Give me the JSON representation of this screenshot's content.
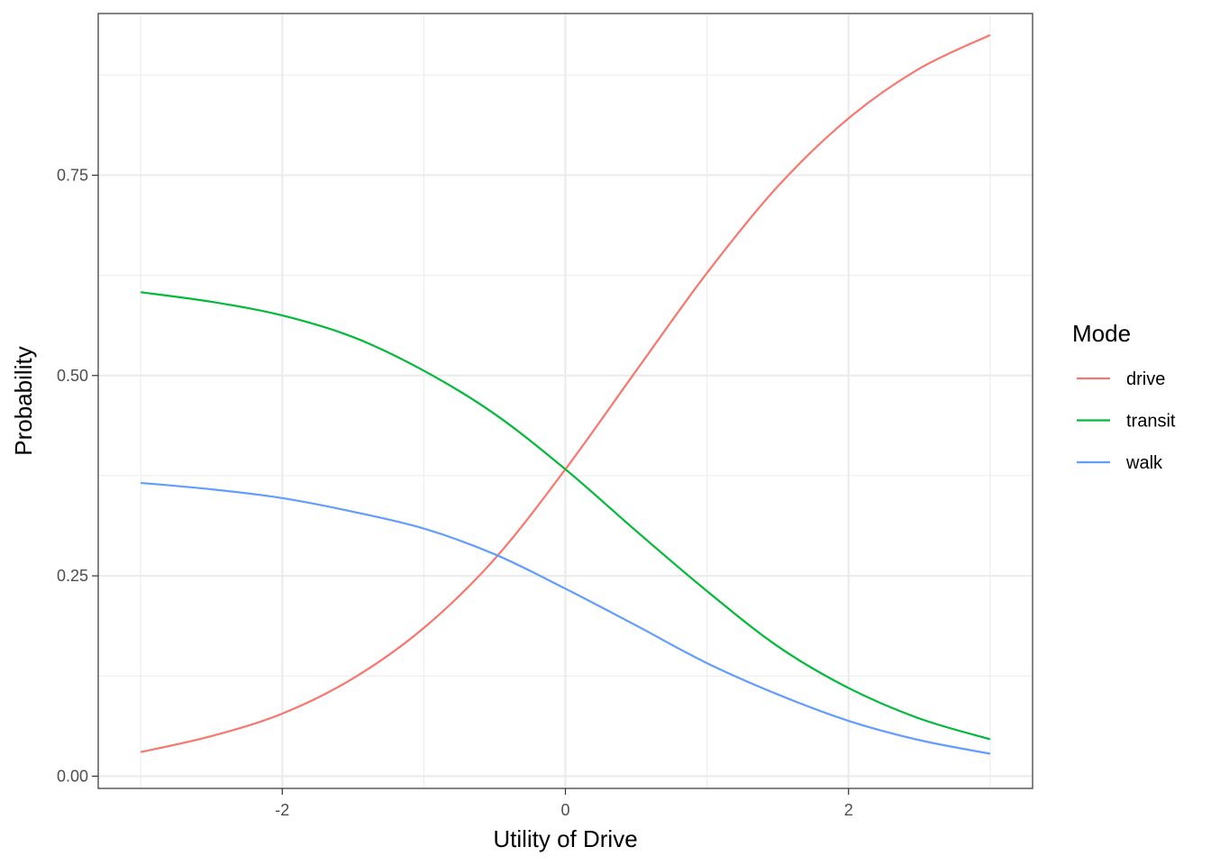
{
  "chart_data": {
    "type": "line",
    "xlabel": "Utility of Drive",
    "ylabel": "Probability",
    "xlim": [
      -3.3,
      3.3
    ],
    "ylim": [
      -0.0153,
      0.9518
    ],
    "x_ticks": [
      {
        "value": -2,
        "label": "-2"
      },
      {
        "value": 0,
        "label": "0"
      },
      {
        "value": 2,
        "label": "2"
      }
    ],
    "y_ticks": [
      {
        "value": 0.0,
        "label": "0.00"
      },
      {
        "value": 0.25,
        "label": "0.25"
      },
      {
        "value": 0.5,
        "label": "0.50"
      },
      {
        "value": 0.75,
        "label": "0.75"
      }
    ],
    "grid": true,
    "legend": {
      "title": "Mode",
      "position": "right"
    },
    "x": [
      -3.0,
      -2.5,
      -2.0,
      -1.5,
      -1.0,
      -0.5,
      0.0,
      0.5,
      1.0,
      1.5,
      2.0,
      2.5,
      3.0
    ],
    "series": [
      {
        "name": "drive",
        "color": "#F8766D",
        "values": [
          0.03,
          0.05,
          0.078,
          0.122,
          0.185,
          0.271,
          0.383,
          0.506,
          0.628,
          0.736,
          0.821,
          0.883,
          0.925
        ]
      },
      {
        "name": "transit",
        "color": "#00BA38",
        "values": [
          0.604,
          0.592,
          0.575,
          0.548,
          0.506,
          0.452,
          0.383,
          0.306,
          0.231,
          0.162,
          0.11,
          0.072,
          0.046
        ]
      },
      {
        "name": "walk",
        "color": "#619CFF",
        "values": [
          0.366,
          0.358,
          0.347,
          0.33,
          0.309,
          0.277,
          0.234,
          0.188,
          0.141,
          0.102,
          0.069,
          0.045,
          0.028
        ]
      }
    ]
  }
}
